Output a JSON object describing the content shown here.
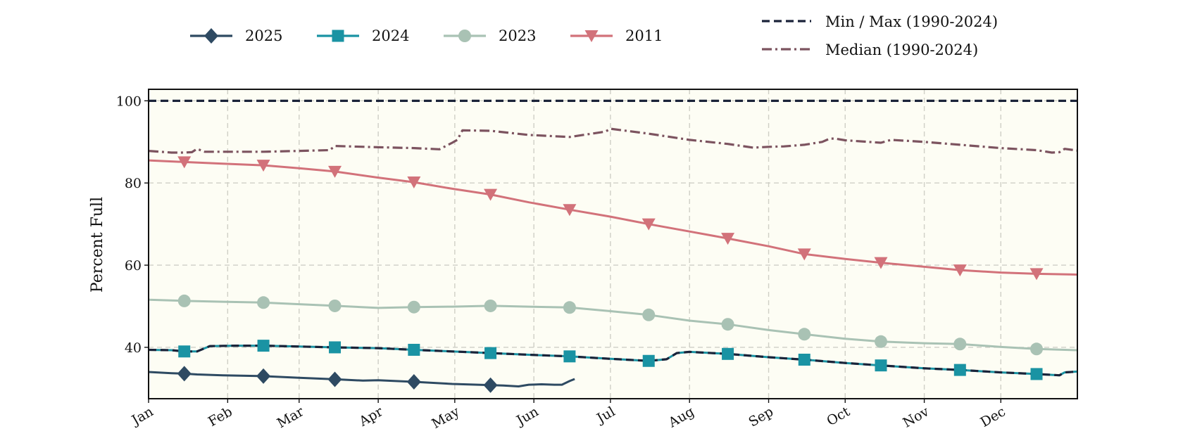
{
  "chart_data": {
    "type": "line",
    "title": "",
    "xlabel": "",
    "ylabel": "Percent Full",
    "xlim": [
      1,
      365
    ],
    "ylim": [
      27.5,
      102.8
    ],
    "yticks": [
      40,
      60,
      80,
      100
    ],
    "xticks": [
      {
        "label": "Jan",
        "day": 1
      },
      {
        "label": "Feb",
        "day": 32
      },
      {
        "label": "Mar",
        "day": 60
      },
      {
        "label": "Apr",
        "day": 91
      },
      {
        "label": "May",
        "day": 121
      },
      {
        "label": "Jun",
        "day": 152
      },
      {
        "label": "Jul",
        "day": 182
      },
      {
        "label": "Aug",
        "day": 213
      },
      {
        "label": "Sep",
        "day": 244
      },
      {
        "label": "Oct",
        "day": 274
      },
      {
        "label": "Nov",
        "day": 305
      },
      {
        "label": "Dec",
        "day": 335
      }
    ],
    "grid": true,
    "plot_background": "#fdfdf4",
    "legend_position": "top",
    "legend": [
      {
        "label": "2025",
        "color": "#2e4a62",
        "marker": "diamond",
        "style": "solid"
      },
      {
        "label": "2024",
        "color": "#1a93a3",
        "marker": "square",
        "style": "solid"
      },
      {
        "label": "2023",
        "color": "#a9c2b4",
        "marker": "circle",
        "style": "solid"
      },
      {
        "label": "2011",
        "color": "#d2727a",
        "marker": "triangle-down",
        "style": "solid"
      },
      {
        "label": "Min / Max (1990-2024)",
        "color": "#1a2339",
        "marker": "none",
        "style": "dashed"
      },
      {
        "label": "Median (1990-2024)",
        "color": "#7c535f",
        "marker": "none",
        "style": "dashdot"
      }
    ],
    "series": [
      {
        "name": "2025",
        "color": "#2e4a62",
        "marker": "diamond",
        "style": "solid",
        "points": [
          [
            1,
            34.0
          ],
          [
            10,
            33.7
          ],
          [
            15,
            33.6
          ],
          [
            20,
            33.4
          ],
          [
            30,
            33.2
          ],
          [
            46,
            33.0
          ],
          [
            60,
            32.6
          ],
          [
            75,
            32.2
          ],
          [
            85,
            31.9
          ],
          [
            91,
            32.0
          ],
          [
            105,
            31.6
          ],
          [
            120,
            31.1
          ],
          [
            130,
            30.9
          ],
          [
            140,
            30.7
          ],
          [
            146,
            30.5
          ],
          [
            150,
            30.9
          ],
          [
            155,
            31.0
          ],
          [
            160,
            30.9
          ],
          [
            163,
            30.9
          ],
          [
            166,
            31.8
          ],
          [
            168,
            32.3
          ]
        ],
        "markers": [
          [
            15,
            33.6
          ],
          [
            46,
            33.0
          ],
          [
            74,
            32.2
          ],
          [
            105,
            31.6
          ],
          [
            135,
            30.8
          ]
        ]
      },
      {
        "name": "2024",
        "color": "#1a93a3",
        "marker": "square",
        "style": "solid",
        "points": [
          [
            1,
            39.4
          ],
          [
            10,
            39.3
          ],
          [
            15,
            39.0
          ],
          [
            20,
            39.0
          ],
          [
            25,
            40.3
          ],
          [
            35,
            40.4
          ],
          [
            46,
            40.4
          ],
          [
            60,
            40.2
          ],
          [
            74,
            40.0
          ],
          [
            91,
            39.8
          ],
          [
            105,
            39.4
          ],
          [
            120,
            39.0
          ],
          [
            135,
            38.6
          ],
          [
            150,
            38.2
          ],
          [
            166,
            37.8
          ],
          [
            182,
            37.2
          ],
          [
            197,
            36.7
          ],
          [
            204,
            37.1
          ],
          [
            208,
            38.6
          ],
          [
            213,
            38.9
          ],
          [
            228,
            38.4
          ],
          [
            244,
            37.6
          ],
          [
            258,
            37.0
          ],
          [
            274,
            36.2
          ],
          [
            288,
            35.6
          ],
          [
            305,
            34.9
          ],
          [
            319,
            34.5
          ],
          [
            335,
            33.9
          ],
          [
            349,
            33.5
          ],
          [
            358,
            33.2
          ],
          [
            360,
            33.9
          ],
          [
            365,
            34.1
          ]
        ],
        "markers": [
          [
            15,
            39.0
          ],
          [
            46,
            40.4
          ],
          [
            74,
            40.0
          ],
          [
            105,
            39.4
          ],
          [
            135,
            38.6
          ],
          [
            166,
            37.8
          ],
          [
            197,
            36.7
          ],
          [
            228,
            38.4
          ],
          [
            258,
            37.0
          ],
          [
            288,
            35.6
          ],
          [
            319,
            34.5
          ],
          [
            349,
            33.5
          ]
        ]
      },
      {
        "name": "2023",
        "color": "#a9c2b4",
        "marker": "circle",
        "style": "solid",
        "points": [
          [
            1,
            51.6
          ],
          [
            15,
            51.3
          ],
          [
            30,
            51.1
          ],
          [
            46,
            50.9
          ],
          [
            60,
            50.5
          ],
          [
            74,
            50.1
          ],
          [
            91,
            49.6
          ],
          [
            105,
            49.8
          ],
          [
            120,
            49.9
          ],
          [
            135,
            50.1
          ],
          [
            150,
            49.9
          ],
          [
            166,
            49.7
          ],
          [
            182,
            48.8
          ],
          [
            197,
            47.9
          ],
          [
            213,
            46.5
          ],
          [
            228,
            45.6
          ],
          [
            244,
            44.2
          ],
          [
            258,
            43.2
          ],
          [
            274,
            42.1
          ],
          [
            288,
            41.4
          ],
          [
            305,
            41.0
          ],
          [
            319,
            40.8
          ],
          [
            335,
            40.1
          ],
          [
            349,
            39.6
          ],
          [
            365,
            39.3
          ]
        ],
        "markers": [
          [
            15,
            51.3
          ],
          [
            46,
            50.9
          ],
          [
            74,
            50.1
          ],
          [
            105,
            49.8
          ],
          [
            135,
            50.1
          ],
          [
            166,
            49.7
          ],
          [
            197,
            47.9
          ],
          [
            228,
            45.6
          ],
          [
            258,
            43.2
          ],
          [
            288,
            41.4
          ],
          [
            319,
            40.8
          ],
          [
            349,
            39.6
          ]
        ]
      },
      {
        "name": "2011",
        "color": "#d2727a",
        "marker": "triangle-down",
        "style": "solid",
        "points": [
          [
            1,
            85.5
          ],
          [
            15,
            85.1
          ],
          [
            30,
            84.7
          ],
          [
            46,
            84.3
          ],
          [
            60,
            83.6
          ],
          [
            74,
            82.8
          ],
          [
            91,
            81.3
          ],
          [
            105,
            80.2
          ],
          [
            120,
            78.6
          ],
          [
            135,
            77.2
          ],
          [
            150,
            75.3
          ],
          [
            166,
            73.5
          ],
          [
            182,
            71.8
          ],
          [
            197,
            70.0
          ],
          [
            213,
            68.2
          ],
          [
            228,
            66.5
          ],
          [
            244,
            64.6
          ],
          [
            258,
            62.7
          ],
          [
            274,
            61.5
          ],
          [
            288,
            60.6
          ],
          [
            305,
            59.6
          ],
          [
            319,
            58.8
          ],
          [
            335,
            58.2
          ],
          [
            349,
            57.9
          ],
          [
            365,
            57.7
          ]
        ],
        "markers": [
          [
            15,
            85.1
          ],
          [
            46,
            84.3
          ],
          [
            74,
            82.8
          ],
          [
            105,
            80.2
          ],
          [
            135,
            77.2
          ],
          [
            166,
            73.5
          ],
          [
            197,
            70.0
          ],
          [
            228,
            66.5
          ],
          [
            258,
            62.7
          ],
          [
            288,
            60.6
          ],
          [
            319,
            58.8
          ],
          [
            349,
            57.9
          ]
        ]
      },
      {
        "name": "Min / Max (1990-2024)",
        "color": "#1a2339",
        "marker": "none",
        "style": "dashed",
        "points": [
          [
            1,
            39.4
          ],
          [
            10,
            39.3
          ],
          [
            15,
            39.0
          ],
          [
            20,
            39.0
          ],
          [
            25,
            40.3
          ],
          [
            35,
            40.4
          ],
          [
            46,
            40.4
          ],
          [
            60,
            40.2
          ],
          [
            74,
            40.0
          ],
          [
            91,
            39.8
          ],
          [
            105,
            39.4
          ],
          [
            120,
            39.0
          ],
          [
            135,
            38.6
          ],
          [
            150,
            38.2
          ],
          [
            166,
            37.8
          ],
          [
            182,
            37.2
          ],
          [
            197,
            36.7
          ],
          [
            204,
            37.1
          ],
          [
            208,
            38.6
          ],
          [
            213,
            38.9
          ],
          [
            228,
            38.4
          ],
          [
            244,
            37.6
          ],
          [
            258,
            37.0
          ],
          [
            274,
            36.2
          ],
          [
            288,
            35.6
          ],
          [
            305,
            34.9
          ],
          [
            319,
            34.5
          ],
          [
            335,
            33.9
          ],
          [
            349,
            33.5
          ],
          [
            358,
            33.2
          ],
          [
            360,
            33.9
          ],
          [
            365,
            34.1
          ]
        ]
      },
      {
        "name": "Min / Max (1990-2024) upper",
        "color": "#1a2339",
        "marker": "none",
        "style": "dashed",
        "points": [
          [
            1,
            100
          ],
          [
            365,
            100
          ]
        ]
      },
      {
        "name": "Median (1990-2024)",
        "color": "#7c535f",
        "marker": "none",
        "style": "dashdot",
        "points": [
          [
            1,
            87.8
          ],
          [
            10,
            87.4
          ],
          [
            15,
            87.4
          ],
          [
            18,
            87.5
          ],
          [
            20,
            88.3
          ],
          [
            23,
            87.6
          ],
          [
            32,
            87.6
          ],
          [
            46,
            87.6
          ],
          [
            60,
            87.8
          ],
          [
            72,
            88.0
          ],
          [
            74,
            89.0
          ],
          [
            91,
            88.7
          ],
          [
            105,
            88.5
          ],
          [
            115,
            88.2
          ],
          [
            120,
            89.8
          ],
          [
            122,
            90.5
          ],
          [
            124,
            92.8
          ],
          [
            135,
            92.7
          ],
          [
            150,
            91.7
          ],
          [
            166,
            91.2
          ],
          [
            180,
            92.5
          ],
          [
            182,
            93.2
          ],
          [
            197,
            92.0
          ],
          [
            213,
            90.5
          ],
          [
            228,
            89.5
          ],
          [
            238,
            88.6
          ],
          [
            244,
            88.8
          ],
          [
            250,
            88.9
          ],
          [
            258,
            89.3
          ],
          [
            265,
            90.0
          ],
          [
            268,
            90.8
          ],
          [
            270,
            90.8
          ],
          [
            274,
            90.4
          ],
          [
            288,
            89.8
          ],
          [
            292,
            90.5
          ],
          [
            305,
            90.0
          ],
          [
            319,
            89.3
          ],
          [
            335,
            88.5
          ],
          [
            349,
            88.0
          ],
          [
            355,
            87.4
          ],
          [
            358,
            87.5
          ],
          [
            360,
            88.3
          ],
          [
            365,
            87.9
          ]
        ]
      }
    ]
  }
}
